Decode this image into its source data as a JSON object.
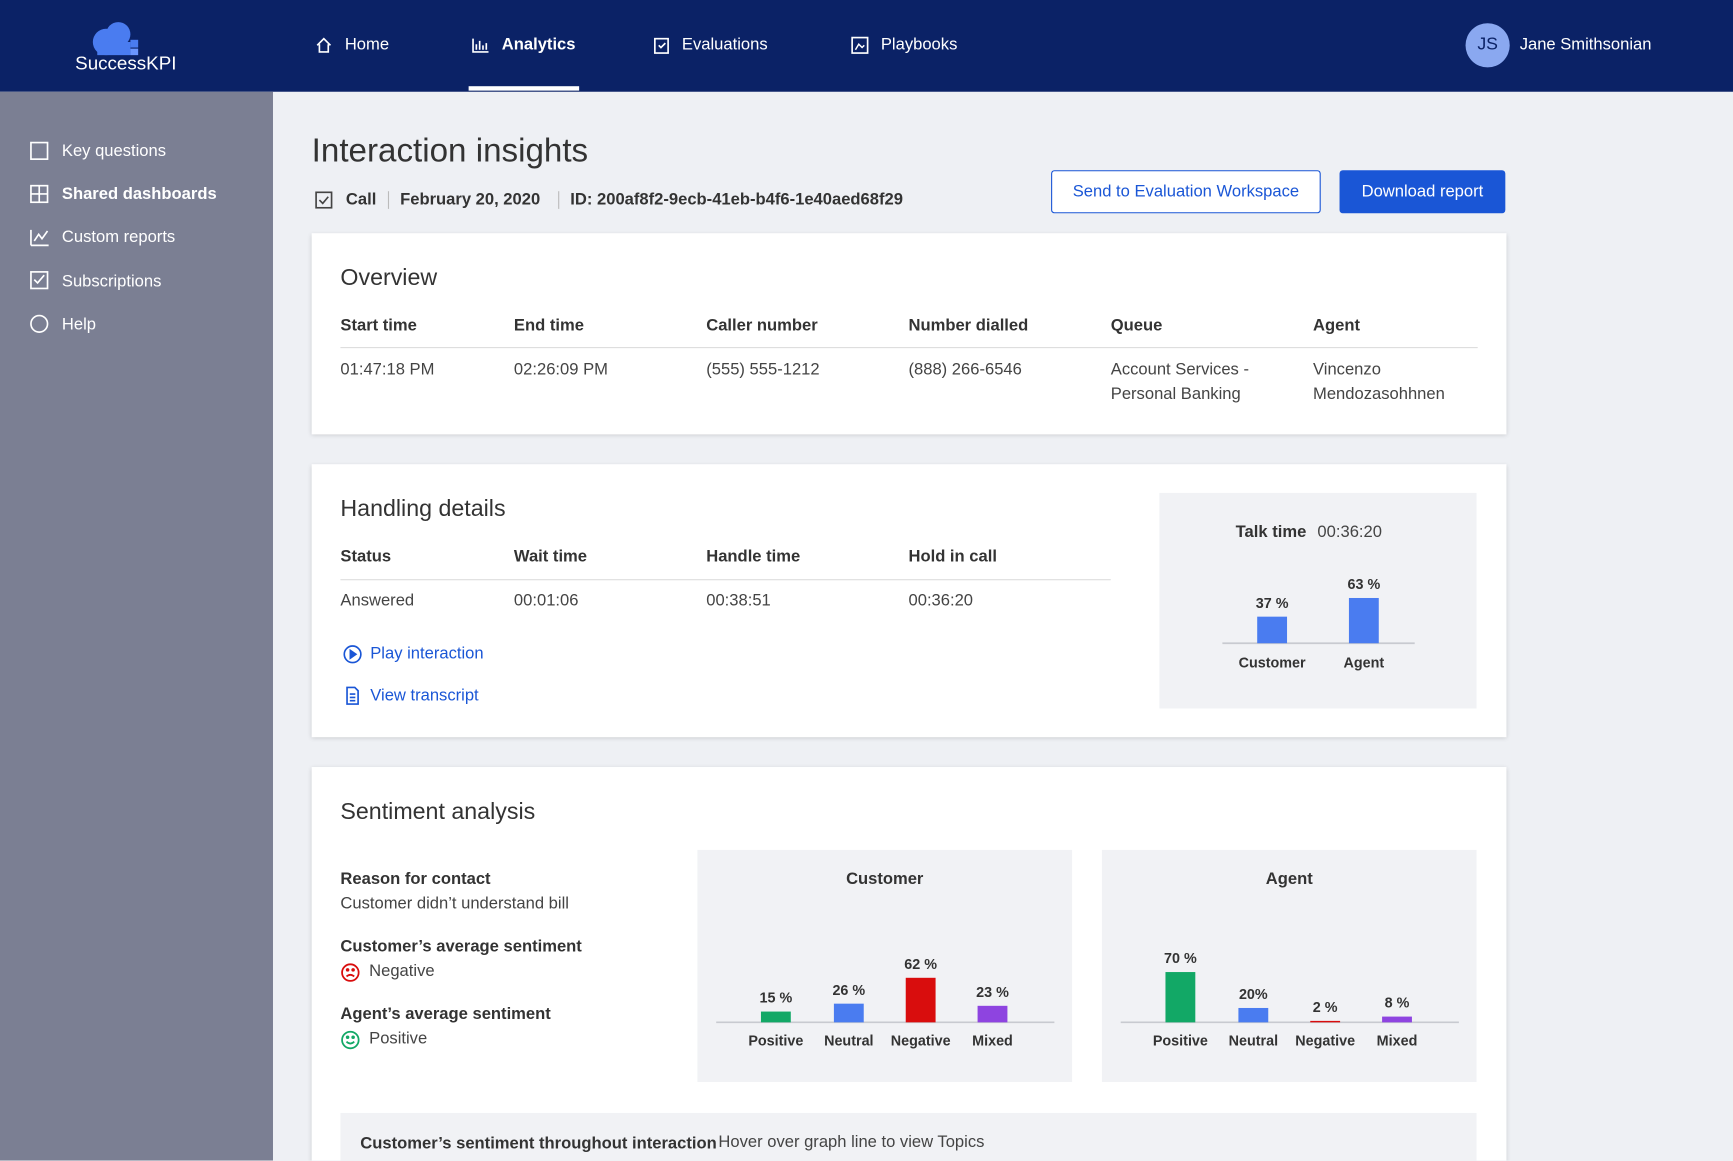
{
  "nav": {
    "brand": "SuccessKPI",
    "items": [
      "Home",
      "Analytics",
      "Evaluations",
      "Playbooks"
    ]
  },
  "user": {
    "initials": "JS",
    "name": "Jane Smithsonian"
  },
  "sidebar": [
    "Key questions",
    "Shared dashboards",
    "Custom reports",
    "Subscriptions",
    "Help"
  ],
  "page": {
    "title": "Interaction insights",
    "type": "Call",
    "date": "February 20, 2020",
    "id": "ID: 200af8f2-9ecb-41eb-b4f6-1e40aed68f29",
    "buttons": [
      "Send to Evaluation Workspace",
      "Download report"
    ]
  },
  "overview": {
    "title": "Overview",
    "headers": [
      "Start time",
      "End time",
      "Caller number",
      "Number dialled",
      "Queue",
      "Agent"
    ],
    "row": [
      "01:47:18 PM",
      "02:26:09 PM",
      "(555) 555-1212",
      "(888) 266-6546",
      "Account Services - Personal Banking",
      "Vincenzo Mendozasohhnen"
    ]
  },
  "handling": {
    "title": "Handling details",
    "headers": [
      "Status",
      "Wait time",
      "Handle time",
      "Hold in call"
    ],
    "row": [
      "Answered",
      "00:01:06",
      "00:38:51",
      "00:36:20"
    ],
    "links": [
      "Play interaction",
      "View transcript"
    ]
  },
  "sentiment": {
    "title": "Sentiment analysis",
    "reason_label": "Reason for contact",
    "reason": "Customer didn’t understand bill",
    "customer_avg_label": "Customer’s average sentiment",
    "customer_avg": "Negative",
    "agent_avg_label": "Agent’s average sentiment",
    "agent_avg": "Positive",
    "timeline_label": "Customer’s sentiment throughout interaction",
    "timeline_hint": "Hover over graph line to view Topics"
  },
  "chart_data": [
    {
      "type": "bar",
      "title": "Talk time",
      "subtitle": "00:36:20",
      "categories": [
        "Customer",
        "Agent"
      ],
      "values": [
        37,
        63
      ],
      "value_labels": [
        "37 %",
        "63 %"
      ],
      "colors": [
        "#4a7cf0",
        "#4a7cf0"
      ]
    },
    {
      "type": "bar",
      "title": "Customer",
      "categories": [
        "Positive",
        "Neutral",
        "Negative",
        "Mixed"
      ],
      "values": [
        15,
        26,
        62,
        23
      ],
      "value_labels": [
        "15 %",
        "26 %",
        "62 %",
        "23 %"
      ],
      "colors": [
        "#12a866",
        "#4a7cf0",
        "#d90d0d",
        "#8e44e0"
      ]
    },
    {
      "type": "bar",
      "title": "Agent",
      "categories": [
        "Positive",
        "Neutral",
        "Negative",
        "Mixed"
      ],
      "values": [
        70,
        20,
        2,
        8
      ],
      "value_labels": [
        "70 %",
        "20%",
        "2 %",
        "8 %"
      ],
      "colors": [
        "#12a866",
        "#4a7cf0",
        "#d90d0d",
        "#8e44e0"
      ]
    }
  ]
}
